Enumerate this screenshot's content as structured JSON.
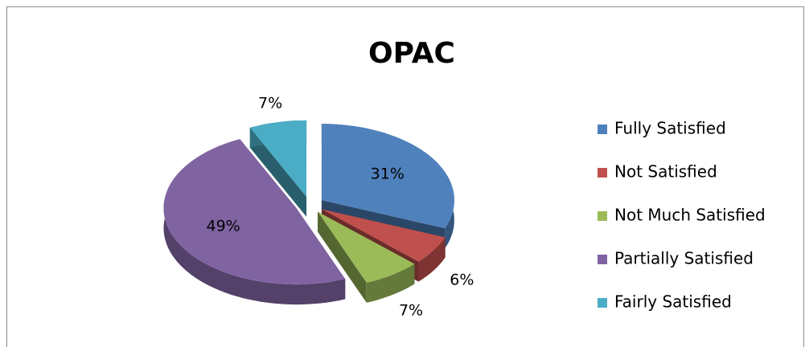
{
  "chart_data": {
    "type": "pie3d",
    "title": "OPAC",
    "categories": [
      "Fully Satisfied",
      "Not Satisfied",
      "Not Much Satisfied",
      "Partially Satisfied",
      "Fairly Satisfied"
    ],
    "values": [
      31,
      6,
      7,
      49,
      7
    ],
    "value_labels": [
      "31%",
      "6%",
      "7%",
      "49%",
      "7%"
    ],
    "colors": [
      "#4f81bd",
      "#c0504d",
      "#9bbb59",
      "#8064a2",
      "#4bacc6"
    ],
    "legend": "right",
    "exploded": true
  }
}
